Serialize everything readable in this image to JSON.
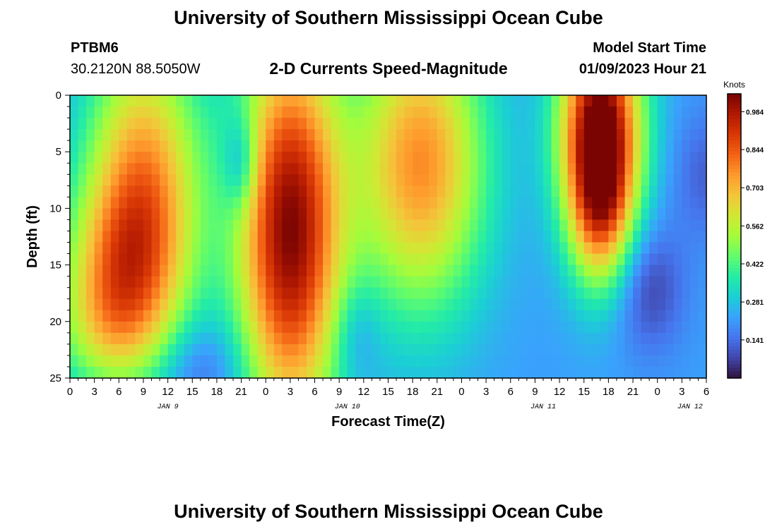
{
  "page": {
    "title_top": "University of Southern Mississippi Ocean Cube",
    "title_bottom": "University of Southern Mississippi Ocean Cube",
    "station_id": "PTBM6",
    "station_coords": "30.2120N  88.5050W",
    "model_start_label": "Model Start Time",
    "model_start_value": "01/09/2023 Hour 21"
  },
  "chart_data": {
    "type": "heatmap",
    "title": "2-D Currents Speed-Magnitude",
    "xlabel": "Forecast Time(Z)",
    "ylabel": "Depth (ft)",
    "x_range_hours": [
      0,
      78
    ],
    "y_range_ft": [
      0,
      25
    ],
    "y_inverted": true,
    "x_tick_labels": [
      "0",
      "3",
      "6",
      "9",
      "12",
      "15",
      "18",
      "21",
      "0",
      "3",
      "6",
      "9",
      "12",
      "15",
      "18",
      "21",
      "0",
      "3",
      "6",
      "9",
      "12",
      "15",
      "18",
      "21",
      "0",
      "3",
      "6"
    ],
    "x_tick_hours": [
      0,
      3,
      6,
      9,
      12,
      15,
      18,
      21,
      24,
      27,
      30,
      33,
      36,
      39,
      42,
      45,
      48,
      51,
      54,
      57,
      60,
      63,
      66,
      69,
      72,
      75,
      78
    ],
    "y_ticks": [
      0,
      5,
      10,
      15,
      20,
      25
    ],
    "y_tick_labels": [
      "0",
      "5",
      "10",
      "15",
      "20",
      "25"
    ],
    "date_labels": [
      {
        "label": "JAN 9",
        "hour": 12
      },
      {
        "label": "JAN 10",
        "hour": 34
      },
      {
        "label": "JAN 11",
        "hour": 58
      },
      {
        "label": "JAN 12",
        "hour": 76
      }
    ],
    "colorbar": {
      "title": "Knots",
      "min": 0.0,
      "max": 1.05,
      "tick_values": [
        0.141,
        0.281,
        0.422,
        0.562,
        0.703,
        0.844,
        0.984
      ],
      "tick_labels": [
        "0.141",
        "0.281",
        "0.422",
        "0.562",
        "0.703",
        "0.844",
        "0.984"
      ],
      "colors": [
        "#30123b",
        "#4145ab",
        "#4675ed",
        "#39a2fc",
        "#1bcfd4",
        "#24eca6",
        "#61fc6c",
        "#a4fc3b",
        "#d1e834",
        "#f3c63a",
        "#fe9b2d",
        "#f36315",
        "#d93806",
        "#b11901",
        "#7a0402"
      ]
    },
    "grid_cols": 78,
    "grid_rows": 25,
    "field_features": [
      {
        "t": 9,
        "d": 8,
        "st": 5,
        "sd": 9,
        "a": 0.55,
        "note": "jan9 blob upper"
      },
      {
        "t": 6,
        "d": 15,
        "st": 5,
        "sd": 5,
        "a": 0.3,
        "note": "jan9 blob lower"
      },
      {
        "t": 5,
        "d": 21,
        "st": 5,
        "sd": 4,
        "a": 0.25,
        "note": "lower left yellow"
      },
      {
        "t": 27,
        "d": 12,
        "st": 4.5,
        "sd": 12,
        "a": 0.82,
        "note": "strong jan10 core"
      },
      {
        "t": 43,
        "d": 6,
        "st": 5.5,
        "sd": 9,
        "a": 0.55,
        "note": "jan10 afternoon"
      },
      {
        "t": 65,
        "d": 3,
        "st": 3.5,
        "sd": 7,
        "a": 0.85,
        "note": "jan11 top"
      },
      {
        "t": 65,
        "d": 10,
        "st": 2.5,
        "sd": 5,
        "a": 0.35,
        "note": "jan11 narrow"
      },
      {
        "t": 71,
        "d": 17,
        "st": 3,
        "sd": 4,
        "a": -0.15,
        "note": "jan11 low pocket"
      },
      {
        "t": 21,
        "d": 6,
        "st": 1.5,
        "sd": 3,
        "a": -0.2,
        "note": "dark pocket"
      },
      {
        "t": 16,
        "d": 24,
        "st": 4,
        "sd": 3,
        "a": -0.12,
        "note": "bottom low"
      },
      {
        "t": 35,
        "d": 21,
        "st": 2,
        "sd": 3,
        "a": -0.1,
        "note": "pocket after core"
      },
      {
        "t": 78,
        "d": 7,
        "st": 3,
        "sd": 4,
        "a": -0.1,
        "note": "right pocket"
      }
    ],
    "field_base": 0.22
  }
}
